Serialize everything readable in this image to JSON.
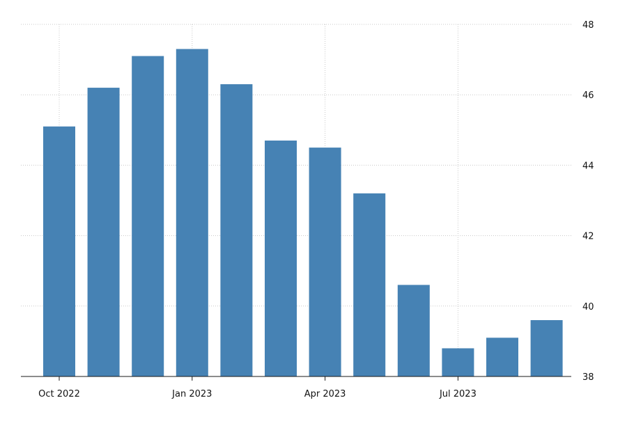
{
  "chart_data": {
    "type": "bar",
    "categories": [
      "Oct 2022",
      "Nov 2022",
      "Dec 2022",
      "Jan 2023",
      "Feb 2023",
      "Mar 2023",
      "Apr 2023",
      "May 2023",
      "Jun 2023",
      "Jul 2023",
      "Aug 2023",
      "Sep 2023"
    ],
    "values": [
      45.1,
      46.2,
      47.1,
      47.3,
      46.3,
      44.7,
      44.5,
      43.2,
      40.6,
      38.8,
      39.1,
      39.6
    ],
    "ylim": [
      38,
      48
    ],
    "yticks": [
      "38",
      "40",
      "42",
      "44",
      "46",
      "48"
    ],
    "xtick_labels": [
      {
        "label": "Oct 2022",
        "category": "Oct 2022"
      },
      {
        "label": "Jan 2023",
        "category": "Jan 2023"
      },
      {
        "label": "Apr 2023",
        "category": "Apr 2023"
      },
      {
        "label": "Jul 2023",
        "category": "Jul 2023"
      }
    ],
    "y_axis_side": "right",
    "grid": true,
    "bar_color": "#4682b4",
    "title": "",
    "xlabel": "",
    "ylabel": ""
  }
}
